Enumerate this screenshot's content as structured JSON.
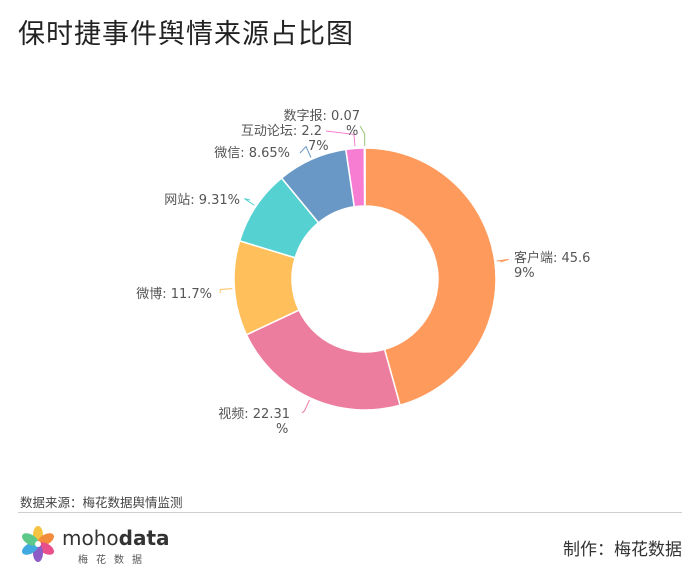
{
  "title": "保时捷事件舆情来源占比图",
  "source_text": "数据来源：梅花数据舆情监测",
  "credit_text": "制作：梅花数据",
  "brand": {
    "prefix": "moho",
    "suffix": "data",
    "sub": "梅花数据"
  },
  "chart_data": {
    "type": "pie",
    "style": "donut",
    "title": "保时捷事件舆情来源占比图",
    "series": [
      {
        "name": "客户端",
        "value": 45.69,
        "color": "#fe9a5c",
        "label_lines": [
          "客户端: 45.6",
          "9%"
        ]
      },
      {
        "name": "视频",
        "value": 22.31,
        "color": "#ec7d9e",
        "label_lines": [
          "视频: 22.31",
          "%"
        ]
      },
      {
        "name": "微博",
        "value": 11.7,
        "color": "#ffbf5b",
        "label_lines": [
          "微博: 11.7%"
        ]
      },
      {
        "name": "网站",
        "value": 9.31,
        "color": "#55d1d2",
        "label_lines": [
          "网站: 9.31%"
        ]
      },
      {
        "name": "微信",
        "value": 8.65,
        "color": "#6a98c6",
        "label_lines": [
          "微信: 8.65%"
        ]
      },
      {
        "name": "互动论坛",
        "value": 2.27,
        "color": "#f77dd3",
        "label_lines": [
          "互动论坛: 2.2",
          "7%"
        ]
      },
      {
        "name": "数字报",
        "value": 0.07,
        "color": "#97c479",
        "label_lines": [
          "数字报: 0.07",
          "%"
        ]
      }
    ]
  }
}
